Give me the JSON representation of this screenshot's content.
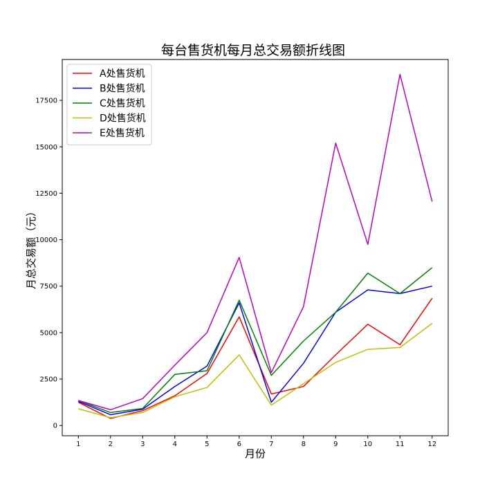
{
  "chart_data": {
    "type": "line",
    "title": "每台售货机每月总交易额折线图",
    "xlabel": "月份",
    "ylabel": "月总交易额（元）",
    "categories": [
      "1",
      "2",
      "3",
      "4",
      "5",
      "6",
      "7",
      "8",
      "9",
      "10",
      "11",
      "12"
    ],
    "x": [
      1,
      2,
      3,
      4,
      5,
      6,
      7,
      8,
      9,
      10,
      11,
      12
    ],
    "xlim": [
      0.5,
      12.5
    ],
    "ylim": [
      -550,
      19700
    ],
    "yticks": [
      0,
      2500,
      5000,
      7500,
      10000,
      12500,
      15000,
      17500
    ],
    "grid": false,
    "legend_position": "upper-left",
    "series": [
      {
        "name": "A处售货机",
        "color": "#ff0000",
        "values": [
          1250,
          380,
          800,
          1600,
          2800,
          5850,
          1700,
          2100,
          3800,
          5450,
          4350,
          6850
        ]
      },
      {
        "name": "B处售货机",
        "color": "#0000ff",
        "values": [
          1300,
          580,
          880,
          2100,
          3200,
          6600,
          1250,
          3350,
          6100,
          7300,
          7100,
          7500
        ]
      },
      {
        "name": "C处售货机",
        "color": "#008000",
        "values": [
          1350,
          700,
          920,
          2750,
          2950,
          6750,
          2700,
          4550,
          6100,
          8200,
          7100,
          8500
        ]
      },
      {
        "name": "D处售货机",
        "color": "#bfbf00",
        "values": [
          900,
          420,
          700,
          1550,
          2050,
          3800,
          1100,
          2250,
          3400,
          4100,
          4200,
          5500
        ]
      },
      {
        "name": "E处售货机",
        "color": "#bf00bf",
        "values": [
          1350,
          850,
          1450,
          3250,
          5000,
          9050,
          2850,
          6400,
          15200,
          9750,
          18900,
          12050
        ]
      }
    ]
  }
}
